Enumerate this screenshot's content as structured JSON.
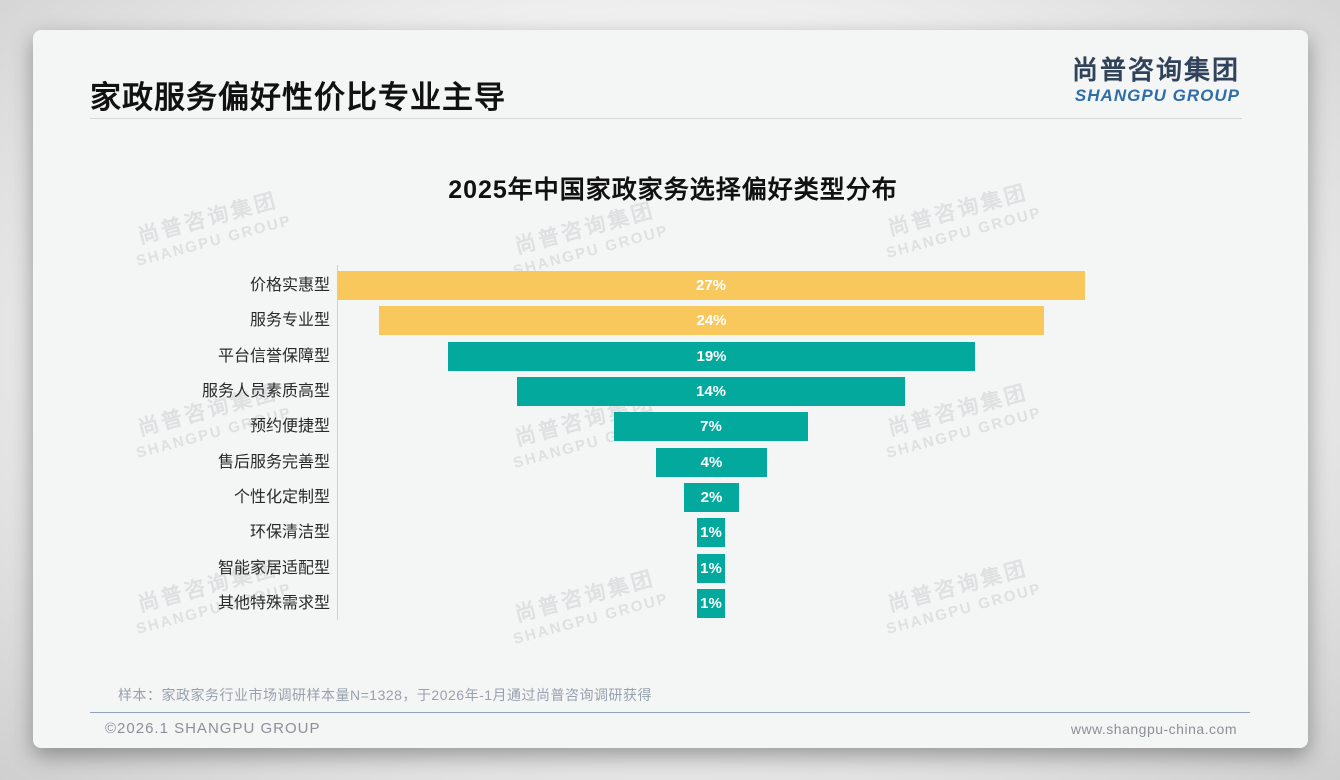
{
  "page": {
    "title": "家政服务偏好性价比专业主导",
    "logo": {
      "cn": "尚普咨询集团",
      "en": "SHANGPU GROUP"
    },
    "watermark": {
      "cn": "尚普咨询集团",
      "en": "SHANGPU GROUP"
    },
    "footnote": "样本：家政家务行业市场调研样本量N=1328，于2026年-1月通过尚普咨询调研获得",
    "footer_left": "©2026.1 SHANGPU GROUP",
    "footer_right": "www.shangpu-china.com"
  },
  "colors": {
    "yellow": "#F8C85C",
    "teal": "#04A99E",
    "logo_cn": "#31435A",
    "logo_en": "#2E6DA8"
  },
  "chart_data": {
    "type": "bar",
    "subtype": "centered-funnel",
    "orientation": "horizontal",
    "title": "2025年中国家政家务选择偏好类型分布",
    "categories": [
      "价格实惠型",
      "服务专业型",
      "平台信誉保障型",
      "服务人员素质高型",
      "预约便捷型",
      "售后服务完善型",
      "个性化定制型",
      "环保清洁型",
      "智能家居适配型",
      "其他特殊需求型"
    ],
    "values": [
      27,
      24,
      19,
      14,
      7,
      4,
      2,
      1,
      1,
      1
    ],
    "labels": [
      "27%",
      "24%",
      "19%",
      "14%",
      "7%",
      "4%",
      "2%",
      "1%",
      "1%",
      "1%"
    ],
    "bar_colors": [
      "#F8C85C",
      "#F8C85C",
      "#04A99E",
      "#04A99E",
      "#04A99E",
      "#04A99E",
      "#04A99E",
      "#04A99E",
      "#04A99E",
      "#04A99E"
    ],
    "value_suffix": "%",
    "xlabel": "",
    "ylabel": "",
    "xlim": [
      0,
      27
    ],
    "grid": false,
    "legend": false
  }
}
